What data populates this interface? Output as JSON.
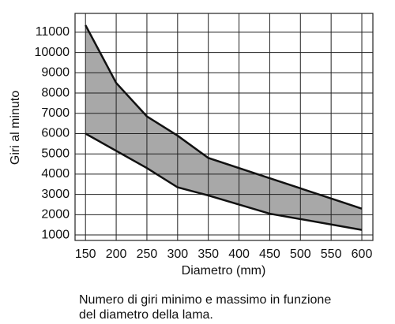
{
  "chart_data": {
    "type": "band",
    "xlabel": "Diametro (mm)",
    "ylabel": "Giri al minuto",
    "caption": [
      "Numero di giri minimo e massimo in funzione",
      "del diametro della lama."
    ],
    "xlim": [
      133,
      618
    ],
    "xticks": [
      150,
      200,
      250,
      300,
      350,
      400,
      450,
      500,
      550,
      600
    ],
    "ylim": [
      730,
      11930
    ],
    "yticks": [
      1000,
      2000,
      3000,
      4000,
      5000,
      6000,
      7000,
      8000,
      9000,
      10000,
      11000
    ],
    "grid": true,
    "band_color": "#a8a8a8",
    "line_color": "#111111",
    "series": [
      {
        "x": [
          150,
          200,
          250,
          300,
          350,
          450,
          600
        ],
        "values": [
          11350,
          8500,
          6850,
          5900,
          4800,
          3800,
          2300
        ]
      },
      {
        "x": [
          150,
          250,
          300,
          350,
          450,
          600
        ],
        "values": [
          6000,
          4300,
          3350,
          2950,
          2050,
          1250
        ]
      }
    ]
  }
}
